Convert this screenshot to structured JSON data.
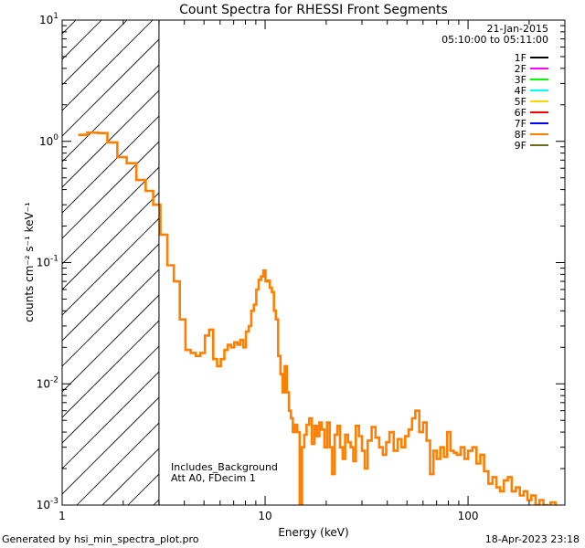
{
  "chart_data": {
    "type": "line",
    "title": "Count Spectra for RHESSI Front Segments",
    "xlabel": "Energy (keV)",
    "ylabel": "counts cm⁻² s⁻¹ keV⁻¹",
    "xscale": "log",
    "yscale": "log",
    "xlim": [
      1,
      300
    ],
    "ylim": [
      0.001,
      10
    ],
    "x_ticks": [
      {
        "value": 1,
        "label": "1"
      },
      {
        "value": 10,
        "label": "10"
      },
      {
        "value": 100,
        "label": "100"
      }
    ],
    "y_ticks": [
      {
        "value": 0.001,
        "base": "10",
        "exp": "-3"
      },
      {
        "value": 0.01,
        "base": "10",
        "exp": "-2"
      },
      {
        "value": 0.1,
        "base": "10",
        "exp": "-1"
      },
      {
        "value": 1,
        "base": "10",
        "exp": "0"
      },
      {
        "value": 10,
        "base": "10",
        "exp": "1"
      }
    ],
    "date": "21-Jan-2015",
    "time_range": "05:10:00 to 05:11:00",
    "legend_position": "top-right",
    "legend": [
      {
        "name": "1F",
        "color": "#000000"
      },
      {
        "name": "2F",
        "color": "#ff00ff"
      },
      {
        "name": "3F",
        "color": "#00ff00"
      },
      {
        "name": "4F",
        "color": "#00ffff"
      },
      {
        "name": "5F",
        "color": "#ffd700"
      },
      {
        "name": "6F",
        "color": "#ff0000"
      },
      {
        "name": "7F",
        "color": "#0000ff"
      },
      {
        "name": "8F",
        "color": "#ff8000"
      },
      {
        "name": "9F",
        "color": "#6b6b1a"
      }
    ],
    "hatched_region_max_keV": 3,
    "annotations": [
      "Includes_Background",
      "Att A0, FDecim 1"
    ],
    "series": [
      {
        "name": "8F",
        "color": "#ff8000",
        "bins": [
          [
            1.2,
            1.33,
            1.13
          ],
          [
            1.33,
            1.5,
            1.18
          ],
          [
            1.5,
            1.67,
            1.17
          ],
          [
            1.67,
            1.87,
            0.98
          ],
          [
            1.87,
            2.08,
            0.74
          ],
          [
            2.08,
            2.32,
            0.66
          ],
          [
            2.32,
            2.58,
            0.48
          ],
          [
            2.58,
            2.81,
            0.39
          ],
          [
            2.81,
            3.05,
            0.3
          ],
          [
            3.05,
            3.3,
            0.17
          ],
          [
            3.3,
            3.55,
            0.095
          ],
          [
            3.55,
            3.8,
            0.07
          ],
          [
            3.8,
            4.05,
            0.034
          ],
          [
            4.05,
            4.3,
            0.019
          ],
          [
            4.3,
            4.55,
            0.018
          ],
          [
            4.55,
            4.8,
            0.017
          ],
          [
            4.8,
            5.05,
            0.018
          ],
          [
            5.05,
            5.3,
            0.025
          ],
          [
            5.3,
            5.55,
            0.028
          ],
          [
            5.55,
            5.8,
            0.016
          ],
          [
            5.8,
            6.05,
            0.014
          ],
          [
            6.05,
            6.3,
            0.016
          ],
          [
            6.3,
            6.55,
            0.019
          ],
          [
            6.55,
            6.8,
            0.021
          ],
          [
            6.8,
            7.05,
            0.02
          ],
          [
            7.05,
            7.3,
            0.022
          ],
          [
            7.3,
            7.55,
            0.021
          ],
          [
            7.55,
            7.8,
            0.023
          ],
          [
            7.8,
            8.05,
            0.02
          ],
          [
            8.05,
            8.3,
            0.027
          ],
          [
            8.3,
            8.55,
            0.03
          ],
          [
            8.55,
            8.8,
            0.04
          ],
          [
            8.8,
            9.05,
            0.045
          ],
          [
            9.05,
            9.3,
            0.06
          ],
          [
            9.3,
            9.55,
            0.072
          ],
          [
            9.55,
            9.8,
            0.077
          ],
          [
            9.8,
            10.05,
            0.086
          ],
          [
            10.05,
            10.3,
            0.07
          ],
          [
            10.3,
            10.55,
            0.071
          ],
          [
            10.55,
            10.8,
            0.062
          ],
          [
            10.8,
            11.05,
            0.057
          ],
          [
            11.05,
            11.3,
            0.04
          ],
          [
            11.3,
            11.6,
            0.034
          ],
          [
            11.6,
            11.9,
            0.017
          ],
          [
            11.9,
            12.2,
            0.012
          ],
          [
            12.2,
            12.5,
            0.0085
          ],
          [
            12.5,
            12.8,
            0.014
          ],
          [
            12.8,
            13.1,
            0.0085
          ],
          [
            13.1,
            13.4,
            0.006
          ],
          [
            13.4,
            13.7,
            0.0052
          ],
          [
            13.7,
            14.0,
            0.004
          ],
          [
            14.0,
            14.4,
            0.0046
          ],
          [
            14.4,
            14.8,
            0.004
          ],
          [
            14.8,
            15.2,
            0.0009
          ],
          [
            15.2,
            15.6,
            0.003
          ],
          [
            15.6,
            16.0,
            0.0038
          ],
          [
            16.0,
            16.5,
            0.0046
          ],
          [
            16.5,
            17.0,
            0.0052
          ],
          [
            17.0,
            17.5,
            0.0032
          ],
          [
            17.5,
            18.0,
            0.0045
          ],
          [
            18.0,
            18.5,
            0.0037
          ],
          [
            18.5,
            19.0,
            0.0048
          ],
          [
            19.0,
            19.6,
            0.0042
          ],
          [
            19.6,
            20.2,
            0.003
          ],
          [
            20.2,
            20.8,
            0.0048
          ],
          [
            20.8,
            21.4,
            0.003
          ],
          [
            21.4,
            22.0,
            0.0018
          ],
          [
            22.0,
            22.7,
            0.0038
          ],
          [
            22.7,
            23.4,
            0.0045
          ],
          [
            23.4,
            24.1,
            0.003
          ],
          [
            24.1,
            24.8,
            0.0024
          ],
          [
            24.8,
            25.6,
            0.0038
          ],
          [
            25.6,
            26.4,
            0.0033
          ],
          [
            26.4,
            27.2,
            0.003
          ],
          [
            27.2,
            28.0,
            0.0023
          ],
          [
            28.0,
            29.0,
            0.0045
          ],
          [
            29.0,
            30.0,
            0.0037
          ],
          [
            30.0,
            31.0,
            0.0028
          ],
          [
            31.0,
            32.0,
            0.002
          ],
          [
            32.0,
            33.5,
            0.0034
          ],
          [
            33.5,
            35.0,
            0.0044
          ],
          [
            35.0,
            36.5,
            0.0036
          ],
          [
            36.5,
            38.0,
            0.003
          ],
          [
            38.0,
            39.5,
            0.0026
          ],
          [
            39.5,
            41.0,
            0.0033
          ],
          [
            41.0,
            43.0,
            0.004
          ],
          [
            43.0,
            45.0,
            0.0028
          ],
          [
            45.0,
            47.0,
            0.0035
          ],
          [
            47.0,
            49.0,
            0.003
          ],
          [
            49.0,
            51.0,
            0.0037
          ],
          [
            51.0,
            53.0,
            0.0042
          ],
          [
            53.0,
            55.0,
            0.0052
          ],
          [
            55.0,
            57.5,
            0.006
          ],
          [
            57.5,
            60.0,
            0.004
          ],
          [
            60.0,
            62.5,
            0.0048
          ],
          [
            62.5,
            65.0,
            0.0034
          ],
          [
            65.0,
            67.5,
            0.0018
          ],
          [
            67.5,
            70.0,
            0.0028
          ],
          [
            70.0,
            73.0,
            0.0024
          ],
          [
            73.0,
            76.0,
            0.003
          ],
          [
            76.0,
            79.0,
            0.0025
          ],
          [
            79.0,
            82.0,
            0.004
          ],
          [
            82.0,
            85.0,
            0.0028
          ],
          [
            85.0,
            88.0,
            0.0027
          ],
          [
            88.0,
            92.0,
            0.0026
          ],
          [
            92.0,
            96.0,
            0.003
          ],
          [
            96.0,
            100.0,
            0.0024
          ],
          [
            100.0,
            105.0,
            0.0028
          ],
          [
            105.0,
            110.0,
            0.003
          ],
          [
            110.0,
            115.0,
            0.0022
          ],
          [
            115.0,
            120.0,
            0.0026
          ],
          [
            120.0,
            126.0,
            0.0019
          ],
          [
            126.0,
            132.0,
            0.0015
          ],
          [
            132.0,
            138.0,
            0.0017
          ],
          [
            138.0,
            144.0,
            0.0014
          ],
          [
            144.0,
            150.0,
            0.0013
          ],
          [
            150.0,
            157.0,
            0.0016
          ],
          [
            157.0,
            164.0,
            0.0017
          ],
          [
            164.0,
            172.0,
            0.0013
          ],
          [
            172.0,
            180.0,
            0.0014
          ],
          [
            180.0,
            188.0,
            0.0012
          ],
          [
            188.0,
            196.0,
            0.0013
          ],
          [
            196.0,
            205.0,
            0.0011
          ],
          [
            205.0,
            215.0,
            0.0012
          ],
          [
            215.0,
            225.0,
            0.001
          ],
          [
            225.0,
            235.0,
            0.0011
          ],
          [
            235.0,
            245.0,
            0.001
          ],
          [
            245.0,
            255.0,
            0.00095
          ],
          [
            255.0,
            270.0,
            0.00105
          ],
          [
            270.0,
            290.0,
            0.0009
          ]
        ]
      }
    ]
  },
  "footer": {
    "left": "Generated by hsi_min_spectra_plot.pro",
    "right": "18-Apr-2023 23:18"
  }
}
